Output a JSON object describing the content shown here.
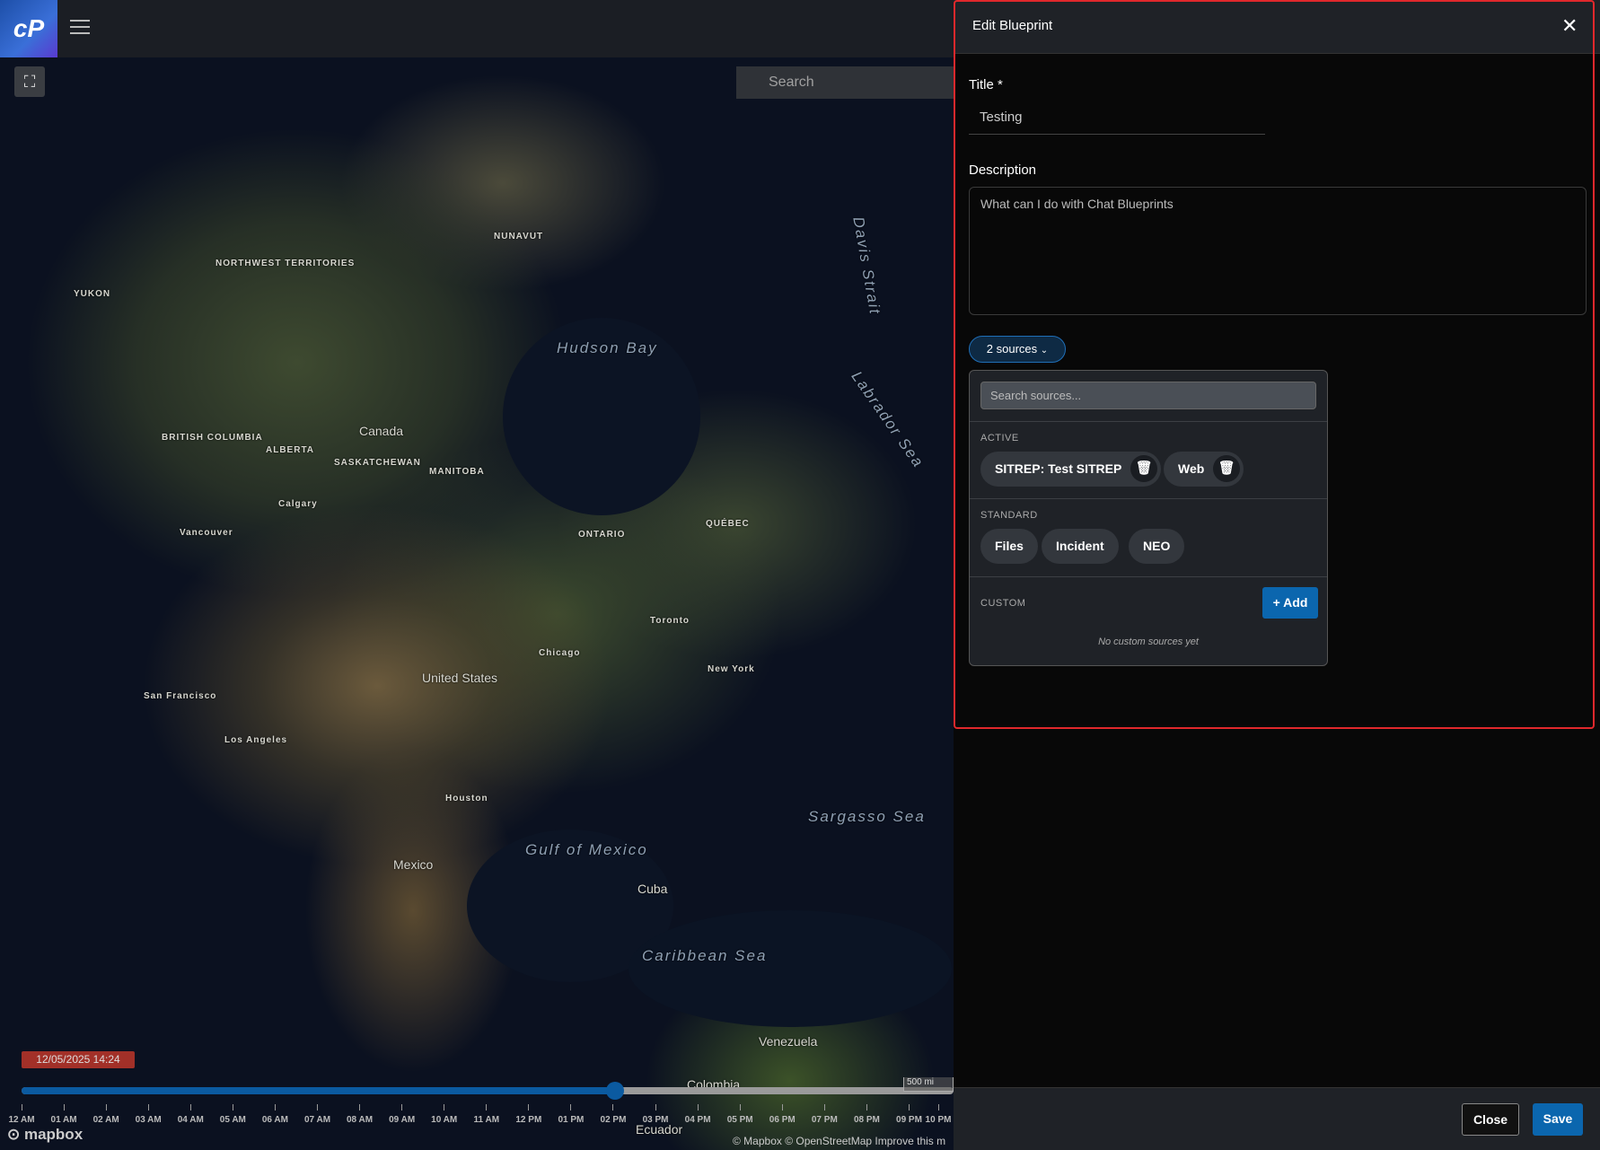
{
  "topbar": {
    "logo": "cP",
    "menu_icon": "hamburger-icon"
  },
  "map": {
    "search_placeholder": "Search",
    "labels": [
      {
        "text": "NUNAVUT",
        "cls": ""
      },
      {
        "text": "NORTHWEST TERRITORIES",
        "cls": ""
      },
      {
        "text": "YUKON",
        "cls": ""
      },
      {
        "text": "Hudson Bay",
        "cls": "sea"
      },
      {
        "text": "Davis Strait",
        "cls": "sea"
      },
      {
        "text": "Labrador Sea",
        "cls": "sea"
      },
      {
        "text": "Canada",
        "cls": "big"
      },
      {
        "text": "BRITISH COLUMBIA",
        "cls": ""
      },
      {
        "text": "ALBERTA",
        "cls": ""
      },
      {
        "text": "SASKATCHEWAN",
        "cls": ""
      },
      {
        "text": "MANITOBA",
        "cls": ""
      },
      {
        "text": "ONTARIO",
        "cls": ""
      },
      {
        "text": "QUÉBEC",
        "cls": ""
      },
      {
        "text": "United States",
        "cls": "big"
      },
      {
        "text": "Mexico",
        "cls": "big"
      },
      {
        "text": "Cuba",
        "cls": "big"
      },
      {
        "text": "Gulf of Mexico",
        "cls": "sea"
      },
      {
        "text": "Sargasso Sea",
        "cls": "sea"
      },
      {
        "text": "Caribbean Sea",
        "cls": "sea"
      },
      {
        "text": "Venezuela",
        "cls": "big"
      },
      {
        "text": "Colombia",
        "cls": "big"
      },
      {
        "text": "Ecuador",
        "cls": "big"
      },
      {
        "text": "New York",
        "cls": ""
      },
      {
        "text": "Chicago",
        "cls": ""
      },
      {
        "text": "Houston",
        "cls": ""
      },
      {
        "text": "San Francisco",
        "cls": ""
      },
      {
        "text": "Los Angeles",
        "cls": ""
      },
      {
        "text": "Toronto",
        "cls": ""
      },
      {
        "text": "Vancouver",
        "cls": ""
      },
      {
        "text": "Calgary",
        "cls": ""
      }
    ],
    "timestamp": "12/05/2025 14:24",
    "timeline_progress": 0.6364,
    "timeline_ticks": [
      "12 AM",
      "01 AM",
      "02 AM",
      "03 AM",
      "04 AM",
      "05 AM",
      "06 AM",
      "07 AM",
      "08 AM",
      "09 AM",
      "10 AM",
      "11 AM",
      "12 PM",
      "01 PM",
      "02 PM",
      "03 PM",
      "04 PM",
      "05 PM",
      "06 PM",
      "07 PM",
      "08 PM",
      "09 PM",
      "10 PM"
    ],
    "mapbox_logo": "mapbox",
    "scale": "500 mi",
    "attribution": "© Mapbox © OpenStreetMap  Improve this m"
  },
  "panel": {
    "title": "Edit Blueprint",
    "title_label": "Title *",
    "title_value": "Testing",
    "description_label": "Description",
    "description_value": "What can I do with Chat Blueprints",
    "sources_button": "2 sources",
    "search_placeholder": "Search sources...",
    "active_heading": "ACTIVE",
    "active": [
      "SITREP: Test SITREP",
      "Web"
    ],
    "standard_heading": "STANDARD",
    "standard": [
      "Files",
      "Incident",
      "NEO"
    ],
    "custom_heading": "CUSTOM",
    "add_label": "+ Add",
    "no_custom": "No custom sources yet",
    "close_label": "Close",
    "save_label": "Save"
  },
  "colors": {
    "accent": "#0b66ae",
    "highlight_border": "#e0282c",
    "timestamp_badge": "#a23028"
  }
}
